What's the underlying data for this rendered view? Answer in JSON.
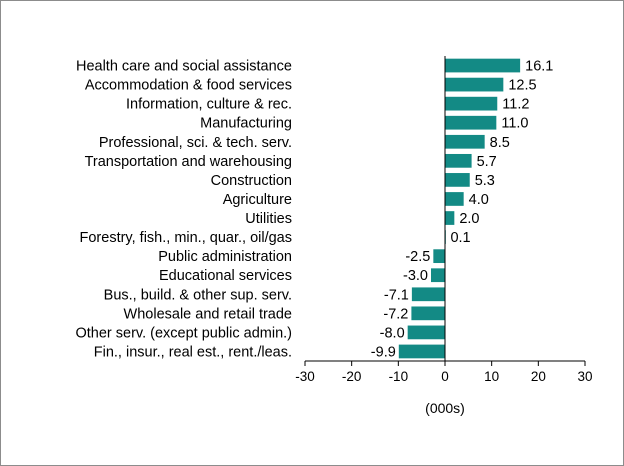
{
  "chart_data": {
    "type": "bar",
    "orientation": "horizontal",
    "categories": [
      "Health care and social assistance",
      "Accommodation & food services",
      "Information, culture & rec.",
      "Manufacturing",
      "Professional, sci. & tech. serv.",
      "Transportation and warehousing",
      "Construction",
      "Agriculture",
      "Utilities",
      "Forestry, fish., min., quar., oil/gas",
      "Public administration",
      "Educational services",
      "Bus., build. & other sup. serv.",
      "Wholesale and retail trade",
      "Other serv. (except public admin.)",
      "Fin., insur., real est., rent./leas."
    ],
    "values": [
      16.1,
      12.5,
      11.2,
      11.0,
      8.5,
      5.7,
      5.3,
      4.0,
      2.0,
      0.1,
      -2.5,
      -3.0,
      -7.1,
      -7.2,
      -8.0,
      -9.9
    ],
    "value_labels": [
      "16.1",
      "12.5",
      "11.2",
      "11.0",
      "8.5",
      "5.7",
      "5.3",
      "4.0",
      "2.0",
      "0.1",
      "-2.5",
      "-3.0",
      "-7.1",
      "-7.2",
      "-8.0",
      "-9.9"
    ],
    "xlim": [
      -30,
      30
    ],
    "xticks": [
      -30,
      -20,
      -10,
      0,
      10,
      20,
      30
    ],
    "xlabel": "(000s)",
    "ylabel": "",
    "title": "",
    "grid": false,
    "legend": "none",
    "bar_color": "#138a85"
  }
}
